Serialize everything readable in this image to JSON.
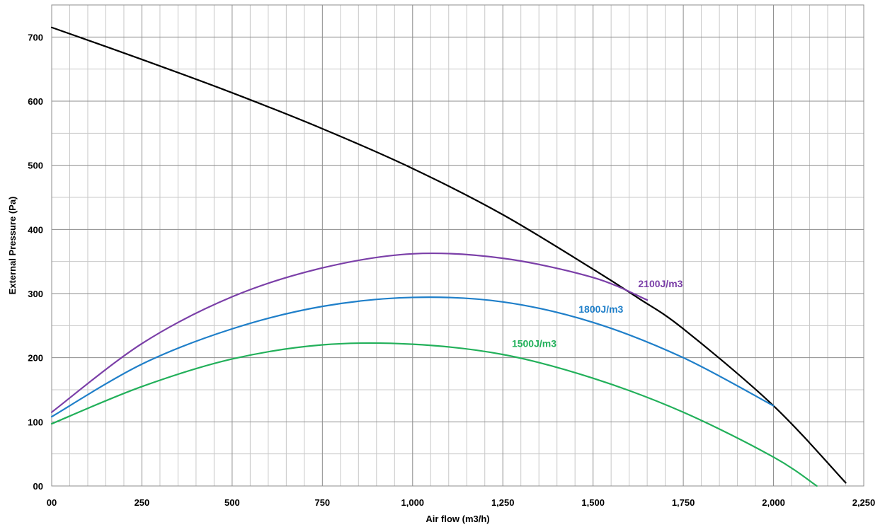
{
  "chart_data": {
    "type": "line",
    "xlabel": "Air flow (m3/h)",
    "ylabel": "External Pressure (Pa)",
    "xlim": [
      0,
      2250
    ],
    "ylim": [
      0,
      700
    ],
    "x_ticks": [
      0,
      250,
      500,
      750,
      1000,
      1250,
      1500,
      1750,
      2000,
      2250
    ],
    "x_tick_labels": [
      "00",
      "250",
      "500",
      "750",
      "1,000",
      "1,250",
      "1,500",
      "1,750",
      "2,000",
      "2,250"
    ],
    "y_ticks": [
      0,
      100,
      200,
      300,
      400,
      500,
      600,
      700
    ],
    "y_tick_labels": [
      "00",
      "100",
      "200",
      "300",
      "400",
      "500",
      "600",
      "700"
    ],
    "x_minor_step": 50,
    "y_minor_step": 50,
    "grid": true,
    "series": [
      {
        "label": "",
        "color": "#000000",
        "x": [
          0,
          250,
          500,
          750,
          1000,
          1250,
          1500,
          1625,
          1750,
          2000,
          2200
        ],
        "y": [
          715,
          665,
          613,
          557,
          495,
          423,
          338,
          293,
          245,
          125,
          5
        ]
      },
      {
        "label": "2100J/m3",
        "color": "#7b3fa8",
        "x": [
          0,
          250,
          500,
          750,
          1000,
          1250,
          1500,
          1650
        ],
        "y": [
          115,
          222,
          295,
          340,
          362,
          355,
          325,
          290
        ]
      },
      {
        "label": "1800J/m3",
        "color": "#1f7fc9",
        "x": [
          0,
          250,
          500,
          750,
          1000,
          1250,
          1500,
          1750,
          2000
        ],
        "y": [
          108,
          190,
          245,
          280,
          294,
          287,
          255,
          200,
          125
        ]
      },
      {
        "label": "1500J/m3",
        "color": "#22b05a",
        "x": [
          0,
          250,
          500,
          750,
          1000,
          1250,
          1500,
          1750,
          2000,
          2120
        ],
        "y": [
          97,
          155,
          198,
          220,
          221,
          205,
          168,
          115,
          45,
          0
        ]
      }
    ],
    "annotations": [
      {
        "text": "2100J/m3",
        "x": 1625,
        "y": 310,
        "color": "#7b3fa8"
      },
      {
        "text": "1800J/m3",
        "x": 1460,
        "y": 270,
        "color": "#1f7fc9"
      },
      {
        "text": "1500J/m3",
        "x": 1275,
        "y": 217,
        "color": "#22b05a"
      }
    ]
  }
}
